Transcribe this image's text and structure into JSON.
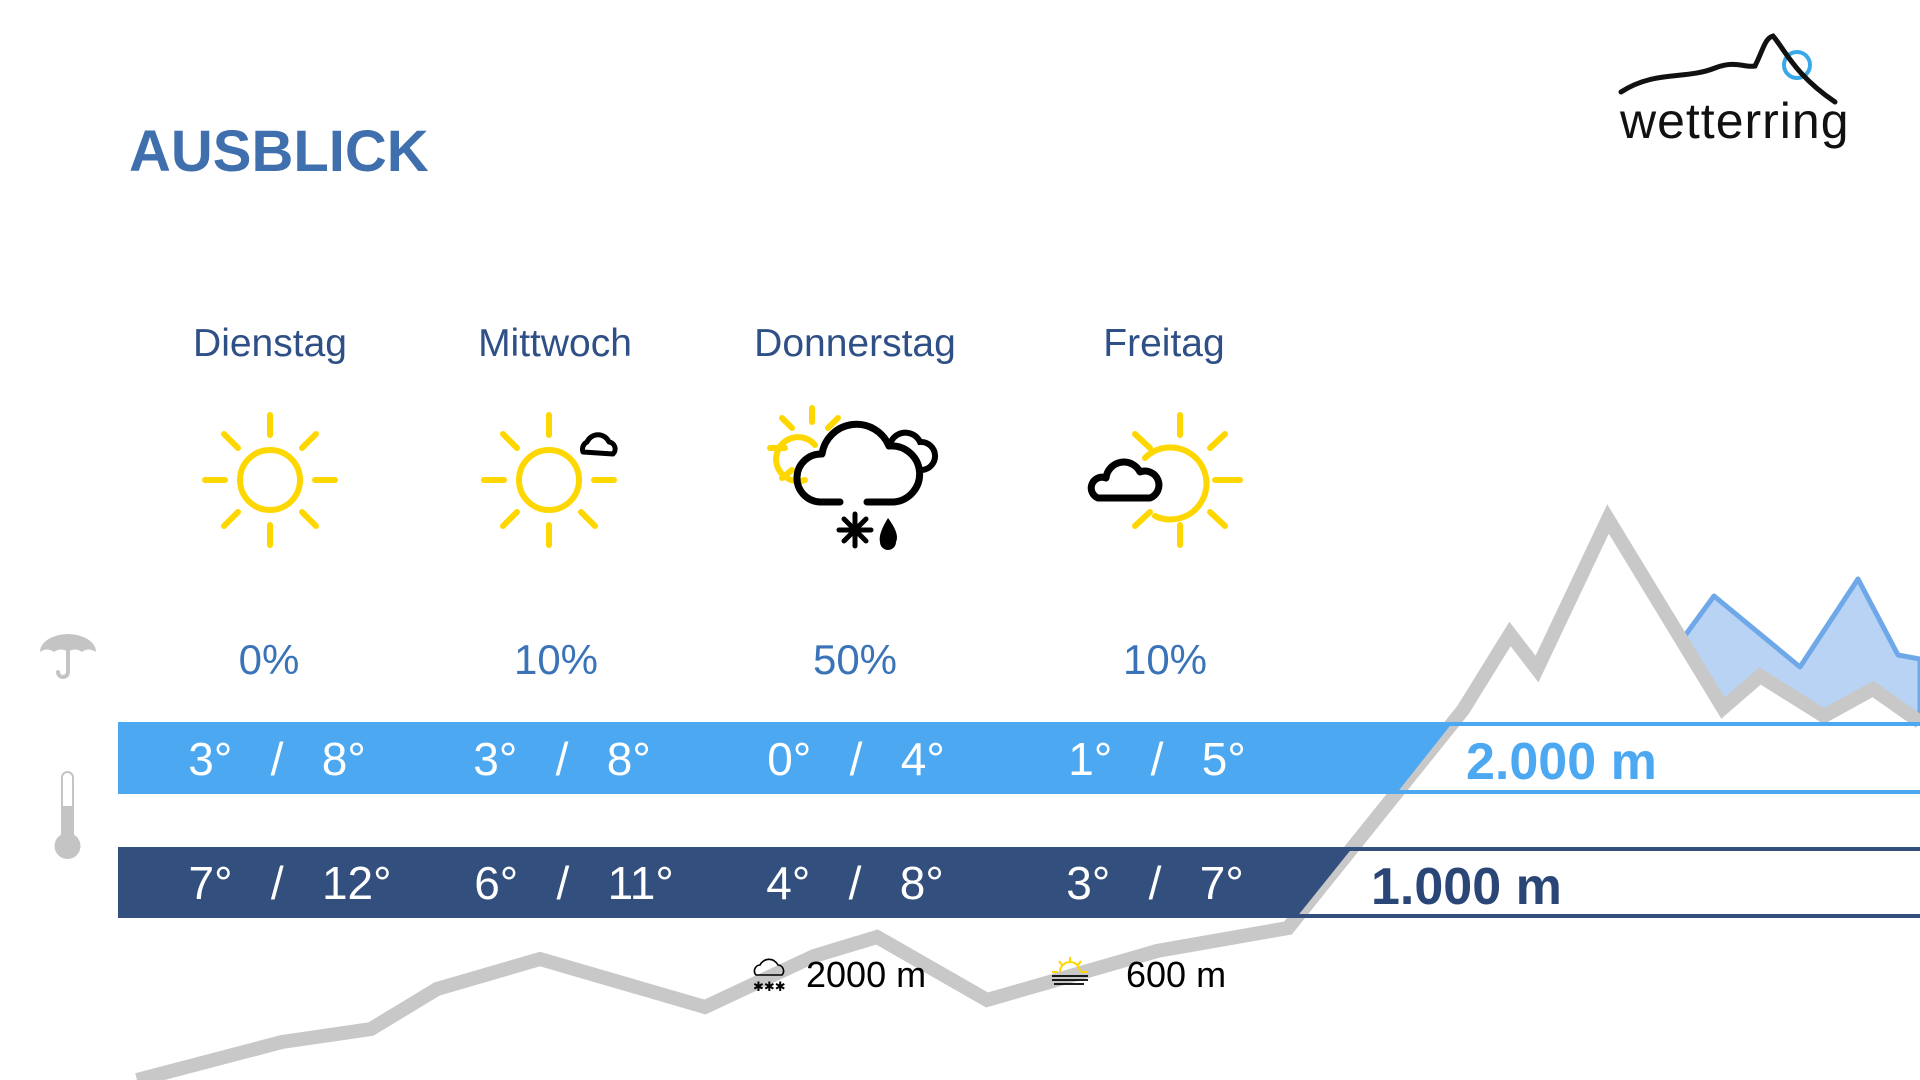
{
  "title": "AUSBLICK",
  "logo": {
    "text": "wetterring"
  },
  "days": [
    {
      "name": "Dienstag",
      "icon": "sun-icon",
      "precip": "0%",
      "temp_2000": {
        "min": "3°",
        "max": "8°"
      },
      "temp_1000": {
        "min": "7°",
        "max": "12°"
      }
    },
    {
      "name": "Mittwoch",
      "icon": "sun-small-cloud-icon",
      "precip": "10%",
      "temp_2000": {
        "min": "3°",
        "max": "8°"
      },
      "temp_1000": {
        "min": "6°",
        "max": "11°"
      }
    },
    {
      "name": "Donnerstag",
      "icon": "cloud-snow-rain-icon",
      "precip": "50%",
      "temp_2000": {
        "min": "0°",
        "max": "4°"
      },
      "temp_1000": {
        "min": "4°",
        "max": "8°"
      }
    },
    {
      "name": "Freitag",
      "icon": "sun-cloud-icon",
      "precip": "10%",
      "temp_2000": {
        "min": "1°",
        "max": "5°"
      },
      "temp_1000": {
        "min": "3°",
        "max": "7°"
      }
    }
  ],
  "separator": "/",
  "altitudes": {
    "high": "2.000 m",
    "low": "1.000 m"
  },
  "snowline": {
    "icon": "snow-cloud-icon",
    "value": "2000 m"
  },
  "fog_line": {
    "icon": "sun-fog-icon",
    "value": "600 m"
  },
  "row_icons": {
    "precip": "umbrella-icon",
    "temperature": "thermometer-icon"
  },
  "colors": {
    "title": "#3f6fad",
    "band_2000": "#4da8f2",
    "band_1000": "#334f7e",
    "sun": "#ffd700",
    "mountain": "#c8c8c8",
    "mountain_fill": "#b9d3f4"
  }
}
